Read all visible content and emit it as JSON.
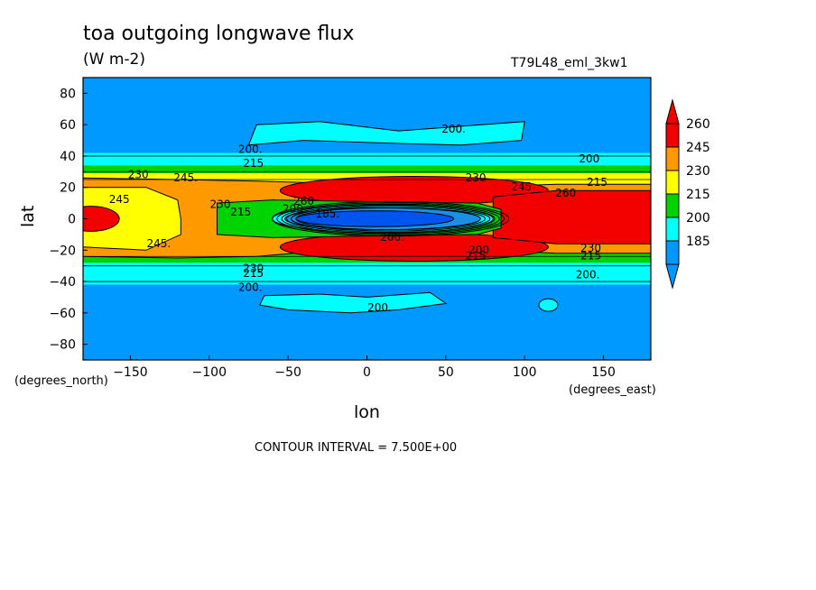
{
  "page": {
    "title": "toa outgoing longwave flux",
    "units": "(W m-2)",
    "run_id": "T79L48_eml_3kw1",
    "x_axis_label": "lon",
    "y_axis_label": "lat",
    "x_units": "(degrees_east)",
    "y_units": "(degrees_north)",
    "contour_interval": "CONTOUR INTERVAL = 7.500E+00"
  },
  "chart_data": {
    "type": "heatmap",
    "title": "toa outgoing longwave flux",
    "xlabel": "lon",
    "ylabel": "lat",
    "xlim": [
      -180,
      180
    ],
    "ylim": [
      -90,
      90
    ],
    "x_ticks": [
      -150,
      -100,
      -50,
      0,
      50,
      100,
      150
    ],
    "y_ticks": [
      80,
      60,
      40,
      20,
      0,
      -20,
      -40,
      -60,
      -80
    ],
    "grid": false,
    "colorbar": {
      "placement": "right",
      "levels": [
        185,
        200,
        215,
        230,
        245,
        260
      ],
      "labels": [
        "260",
        "245",
        "230",
        "215",
        "200",
        "185"
      ],
      "colors": [
        "#f20000",
        "#ff9900",
        "#ffff00",
        "#00d400",
        "#00ffff",
        "#0099ff"
      ],
      "under_color": "#0099ff",
      "over_color": "#f20000"
    },
    "fill_colors": {
      "lt185": "#0099ff",
      "185": "#1a8fe6",
      "200": "#00ffff",
      "215": "#00d400",
      "230": "#ffff00",
      "245": "#ff9900",
      "260": "#f20000",
      "deep_convection": "#0055ee"
    },
    "contour_labels": [
      {
        "text": "200.",
        "lon": 55,
        "lat": 57
      },
      {
        "text": "200.",
        "lon": -74,
        "lat": 44
      },
      {
        "text": "215",
        "lon": -72,
        "lat": 35
      },
      {
        "text": "200",
        "lon": 141,
        "lat": 38
      },
      {
        "text": "230",
        "lon": -145,
        "lat": 28
      },
      {
        "text": "245.",
        "lon": -115,
        "lat": 26
      },
      {
        "text": "230",
        "lon": 69,
        "lat": 26
      },
      {
        "text": "245",
        "lon": 98,
        "lat": 20
      },
      {
        "text": "260",
        "lon": 126,
        "lat": 16
      },
      {
        "text": "215",
        "lon": 146,
        "lat": 23
      },
      {
        "text": "245",
        "lon": -157,
        "lat": 12
      },
      {
        "text": "230",
        "lon": -93,
        "lat": 9
      },
      {
        "text": "215",
        "lon": -80,
        "lat": 4
      },
      {
        "text": "260",
        "lon": -40,
        "lat": 11
      },
      {
        "text": "200",
        "lon": -47,
        "lat": 6
      },
      {
        "text": "185.",
        "lon": -25,
        "lat": 3
      },
      {
        "text": "200.",
        "lon": 16,
        "lat": -12
      },
      {
        "text": "245.",
        "lon": -132,
        "lat": -16
      },
      {
        "text": "200",
        "lon": 71,
        "lat": -20
      },
      {
        "text": "215",
        "lon": 69,
        "lat": -24
      },
      {
        "text": "230",
        "lon": 142,
        "lat": -19
      },
      {
        "text": "215",
        "lon": 142,
        "lat": -24
      },
      {
        "text": "230",
        "lon": -72,
        "lat": -32
      },
      {
        "text": "215",
        "lon": -72,
        "lat": -35
      },
      {
        "text": "200.",
        "lon": -74,
        "lat": -44
      },
      {
        "text": "200.",
        "lon": 140,
        "lat": -36
      },
      {
        "text": "200.",
        "lon": 8,
        "lat": -57
      }
    ]
  }
}
